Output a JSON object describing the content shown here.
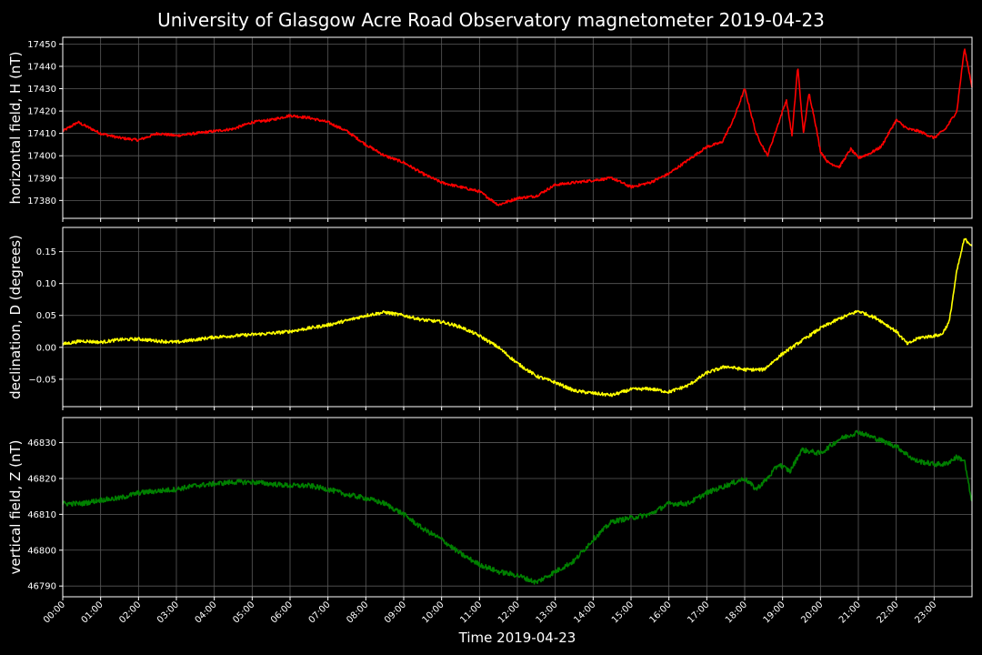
{
  "chart_data": {
    "type": "line",
    "title": "University of Glasgow Acre Road Observatory magnetometer 2019-04-23",
    "xlabel": "Time 2019-04-23",
    "x_tick_labels": [
      "00:00",
      "01:00",
      "02:00",
      "03:00",
      "04:00",
      "05:00",
      "06:00",
      "07:00",
      "08:00",
      "09:00",
      "10:00",
      "11:00",
      "12:00",
      "13:00",
      "14:00",
      "15:00",
      "16:00",
      "17:00",
      "18:00",
      "19:00",
      "20:00",
      "21:00",
      "22:00",
      "23:00"
    ],
    "xlim_hours": [
      0,
      24
    ],
    "grid": true,
    "background": "#000000",
    "panels": [
      {
        "ylabel": "horizontal field, H (nT)",
        "color": "#ff0000",
        "ylim": [
          17372,
          17453
        ],
        "yticks": [
          17380,
          17390,
          17400,
          17410,
          17420,
          17430,
          17440,
          17450
        ],
        "ytick_labels": [
          "17380",
          "17390",
          "17400",
          "17410",
          "17420",
          "17430",
          "17440",
          "17450"
        ],
        "noise": 0.6,
        "x_hours": [
          0,
          0.4,
          1,
          1.5,
          2,
          2.5,
          3,
          3.5,
          4,
          4.5,
          5,
          5.5,
          6,
          6.5,
          7,
          7.5,
          8,
          8.5,
          9,
          9.5,
          10,
          10.5,
          11,
          11.5,
          12,
          12.5,
          13,
          13.5,
          14,
          14.5,
          15,
          15.5,
          16,
          16.5,
          17,
          17.4,
          17.7,
          18,
          18.3,
          18.6,
          18.9,
          19.1,
          19.25,
          19.4,
          19.55,
          19.7,
          19.85,
          20,
          20.2,
          20.5,
          20.8,
          21,
          21.3,
          21.6,
          22,
          22.3,
          22.6,
          23,
          23.3,
          23.6,
          23.8,
          24
        ],
        "values": [
          17411,
          17415,
          17410,
          17408,
          17407,
          17410,
          17409,
          17410,
          17411,
          17412,
          17415,
          17416,
          17418,
          17417,
          17415,
          17411,
          17405,
          17400,
          17397,
          17392,
          17388,
          17386,
          17384,
          17378,
          17381,
          17382,
          17387,
          17388,
          17389,
          17390,
          17386,
          17388,
          17392,
          17398,
          17404,
          17406,
          17416,
          17430,
          17410,
          17400,
          17415,
          17425,
          17409,
          17440,
          17410,
          17428,
          17416,
          17402,
          17397,
          17395,
          17403,
          17399,
          17401,
          17404,
          17416,
          17412,
          17411,
          17408,
          17412,
          17420,
          17448,
          17431
        ]
      },
      {
        "ylabel": "declination, D (degrees)",
        "color": "#ffff00",
        "ylim": [
          -0.093,
          0.188
        ],
        "yticks": [
          -0.05,
          0.0,
          0.05,
          0.1,
          0.15
        ],
        "ytick_labels": [
          "−0.05",
          "0.00",
          "0.05",
          "0.10",
          "0.15"
        ],
        "noise": 0.0025,
        "x_hours": [
          0,
          0.5,
          1,
          1.5,
          2,
          2.5,
          3,
          3.5,
          4,
          4.5,
          5,
          5.5,
          6,
          6.5,
          7,
          7.5,
          8,
          8.5,
          9,
          9.5,
          10,
          10.5,
          11,
          11.5,
          12,
          12.5,
          13,
          13.5,
          14,
          14.5,
          15,
          15.5,
          16,
          16.5,
          17,
          17.5,
          18,
          18.5,
          19,
          19.5,
          20,
          20.5,
          21,
          21.5,
          22,
          22.3,
          22.6,
          23,
          23.2,
          23.4,
          23.6,
          23.8,
          24
        ],
        "values": [
          0.005,
          0.01,
          0.008,
          0.012,
          0.013,
          0.01,
          0.008,
          0.012,
          0.016,
          0.018,
          0.02,
          0.022,
          0.025,
          0.03,
          0.035,
          0.042,
          0.05,
          0.055,
          0.05,
          0.043,
          0.04,
          0.032,
          0.018,
          0.0,
          -0.025,
          -0.045,
          -0.055,
          -0.068,
          -0.072,
          -0.075,
          -0.066,
          -0.065,
          -0.07,
          -0.06,
          -0.04,
          -0.03,
          -0.035,
          -0.035,
          -0.01,
          0.01,
          0.03,
          0.045,
          0.057,
          0.045,
          0.025,
          0.005,
          0.015,
          0.018,
          0.02,
          0.04,
          0.12,
          0.17,
          0.16
        ]
      },
      {
        "ylabel": "vertical field, Z (nT)",
        "color": "#008000",
        "ylim": [
          46787,
          46837
        ],
        "yticks": [
          46790,
          46800,
          46810,
          46820,
          46830
        ],
        "ytick_labels": [
          "46790",
          "46800",
          "46810",
          "46820",
          "46830"
        ],
        "noise": 0.7,
        "x_hours": [
          0,
          0.5,
          1,
          1.5,
          2,
          2.5,
          3,
          3.5,
          4,
          4.5,
          5,
          5.5,
          6,
          6.5,
          7,
          7.5,
          8,
          8.5,
          9,
          9.5,
          10,
          10.5,
          11,
          11.5,
          12,
          12.5,
          13,
          13.5,
          14,
          14.5,
          15,
          15.5,
          16,
          16.5,
          17,
          17.5,
          18,
          18.3,
          18.6,
          18.9,
          19.2,
          19.5,
          20,
          20.5,
          21,
          21.5,
          22,
          22.5,
          23,
          23.3,
          23.6,
          23.8,
          24
        ],
        "values": [
          46813,
          46813,
          46814,
          46814.5,
          46816,
          46816.5,
          46817,
          46818,
          46818.5,
          46819,
          46819,
          46818.5,
          46818,
          46818,
          46817,
          46815.5,
          46814.5,
          46813,
          46810,
          46806,
          46803,
          46799,
          46796,
          46794,
          46793,
          46791,
          46794,
          46797,
          46803,
          46808,
          46809,
          46810,
          46813,
          46813,
          46816,
          46818,
          46820,
          46817,
          46820,
          46824,
          46822,
          46828,
          46827,
          46831,
          46833,
          46831,
          46829,
          46825,
          46824,
          46824,
          46826,
          46825,
          46813
        ]
      }
    ]
  }
}
